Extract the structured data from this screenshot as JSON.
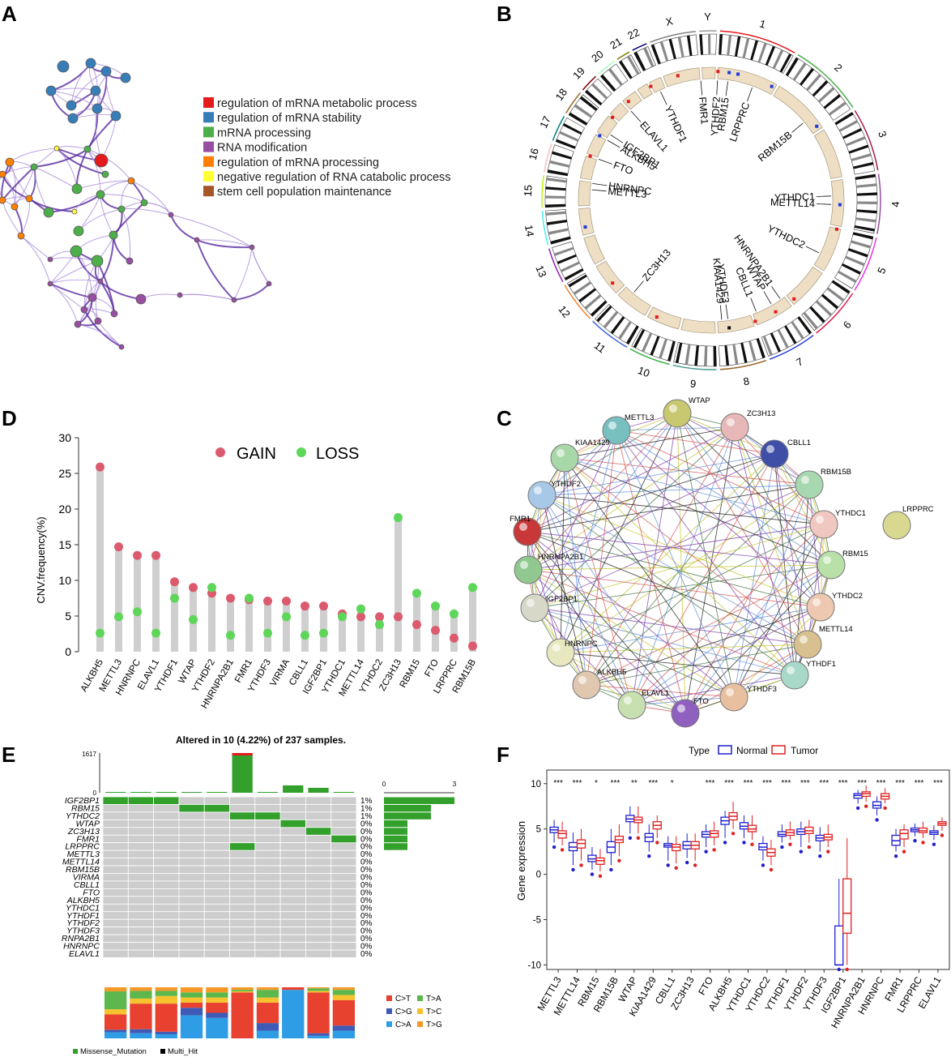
{
  "panels": {
    "a": "A",
    "b": "B",
    "c": "C",
    "d": "D",
    "e": "E",
    "f": "F"
  },
  "panel_a": {
    "legend": [
      {
        "label": "regulation of mRNA metabolic process",
        "color": "#e41a1c"
      },
      {
        "label": "regulation of mRNA stability",
        "color": "#377eb8"
      },
      {
        "label": "mRNA processing",
        "color": "#4daf4a"
      },
      {
        "label": "RNA modification",
        "color": "#984ea3"
      },
      {
        "label": "regulation of mRNA processing",
        "color": "#ff7f00"
      },
      {
        "label": "negative regulation of RNA catabolic process",
        "color": "#ffff33"
      },
      {
        "label": "stem cell population maintenance",
        "color": "#a65628"
      }
    ]
  },
  "panel_b": {
    "chromosomes": [
      "1",
      "2",
      "3",
      "4",
      "5",
      "6",
      "7",
      "8",
      "9",
      "10",
      "11",
      "12",
      "13",
      "14",
      "15",
      "16",
      "17",
      "18",
      "19",
      "20",
      "21",
      "22",
      "X",
      "Y"
    ],
    "genes": [
      "FMR1",
      "YTHDF2",
      "RBM15",
      "LRPPRC",
      "RBM15B",
      "YTHDC1",
      "METTL14",
      "YTHDC2",
      "HNRNPA2B1",
      "WTAP",
      "CBLL1",
      "YTHDF3",
      "KIAA1429",
      "ZC3H13",
      "METTL3",
      "HNRNPC",
      "FTO",
      "ALKBH5",
      "IGF2BP1",
      "ELAVL1",
      "YTHDF1"
    ]
  },
  "panel_c": {
    "nodes": [
      "WTAP",
      "ZC3H13",
      "CBLL1",
      "RBM15B",
      "YTHDC1",
      "RBM15",
      "YTHDC2",
      "METTL14",
      "YTHDF1",
      "YTHDF3",
      "FTO",
      "ELAVL1",
      "ALKBH5",
      "HNRNPC",
      "IGF2BP1",
      "HNRNPA2B1",
      "FMR1",
      "YTHDF2",
      "KIAA1429",
      "METTL3"
    ],
    "isolated": "LRPPRC"
  },
  "chart_data": [
    {
      "panel": "D",
      "type": "scatter",
      "title": "",
      "ylabel": "CNV.frequency(%)",
      "ylim": [
        0,
        30
      ],
      "yticks": [
        "0",
        "5",
        "10",
        "15",
        "20",
        "25",
        "30"
      ],
      "categories": [
        "ALKBH5",
        "METTL3",
        "HNRNPC",
        "ELAVL1",
        "YTHDF1",
        "WTAP",
        "YTHDF2",
        "HNRNPA2B1",
        "FMR1",
        "YTHDF3",
        "VIRMA",
        "CBLL1",
        "IGF2BP1",
        "YTHDC1",
        "METTL14",
        "YTHDC2",
        "ZC3H13",
        "RBM15",
        "FTO",
        "LRPPRC",
        "RBM15B"
      ],
      "series": [
        {
          "name": "GAIN",
          "color": "#dc5a6e",
          "values": [
            25.9,
            14.7,
            13.5,
            13.5,
            9.8,
            9.0,
            8.2,
            7.5,
            7.3,
            7.1,
            7.1,
            6.4,
            6.4,
            5.3,
            4.9,
            4.9,
            4.9,
            3.8,
            3.0,
            1.9,
            0.8
          ]
        },
        {
          "name": "LOSS",
          "color": "#5dd65a",
          "values": [
            2.6,
            4.9,
            5.6,
            2.6,
            7.5,
            4.5,
            9.0,
            2.3,
            7.5,
            2.6,
            4.9,
            2.3,
            2.6,
            4.9,
            6.0,
            3.8,
            18.8,
            8.2,
            6.4,
            5.3,
            9.0
          ]
        }
      ]
    },
    {
      "panel": "E",
      "type": "heatmap",
      "title": "Altered in 10 (4.22%) of 237 samples.",
      "top_axis_max": "1617",
      "top_axis_min": "0",
      "top_values": [
        8,
        10,
        12,
        6,
        15,
        1617,
        10,
        300,
        200,
        10
      ],
      "right_axis": [
        "0",
        "3"
      ],
      "genes": [
        "IGF2BP1",
        "RBM15",
        "YTHDC2",
        "WTAP",
        "ZC3H13",
        "FMR1",
        "LRPPRC",
        "METTL3",
        "METTL14",
        "RBM15B",
        "VIRMA",
        "CBLL1",
        "FTO",
        "ALKBH5",
        "YTHDC1",
        "YTHDF1",
        "YTHDF2",
        "YTHDF3",
        "RNPA2B1",
        "HNRNPC",
        "ELAVL1"
      ],
      "percents": [
        "1%",
        "1%",
        "1%",
        "0%",
        "0%",
        "0%",
        "0%",
        "0%",
        "0%",
        "0%",
        "0%",
        "0%",
        "0%",
        "0%",
        "0%",
        "0%",
        "0%",
        "0%",
        "0%",
        "0%",
        "0%"
      ],
      "gene_counts": [
        3,
        2,
        2,
        1,
        1,
        1,
        1,
        0,
        0,
        0,
        0,
        0,
        0,
        0,
        0,
        0,
        0,
        0,
        0,
        0,
        0
      ],
      "mutated_cells": [
        [
          0,
          0
        ],
        [
          0,
          1
        ],
        [
          0,
          2
        ],
        [
          1,
          3
        ],
        [
          1,
          4
        ],
        [
          2,
          5
        ],
        [
          2,
          6
        ],
        [
          3,
          7
        ],
        [
          4,
          8
        ],
        [
          5,
          9
        ],
        [
          6,
          5
        ]
      ],
      "titv_legend": [
        {
          "label": "C>T",
          "color": "#e8412f"
        },
        {
          "label": "T>A",
          "color": "#5cb74c"
        },
        {
          "label": "C>G",
          "color": "#3f5bb5"
        },
        {
          "label": "T>C",
          "color": "#f6c22d"
        },
        {
          "label": "C>A",
          "color": "#2f9de5"
        },
        {
          "label": "T>G",
          "color": "#f59a28"
        }
      ],
      "titv": [
        [
          0.3,
          0.35,
          0.05,
          0.1,
          0.12,
          0.08
        ],
        [
          0.5,
          0.15,
          0.08,
          0.1,
          0.1,
          0.07
        ],
        [
          0.55,
          0.1,
          0.05,
          0.15,
          0.08,
          0.07
        ],
        [
          0.1,
          0.1,
          0.15,
          0.1,
          0.45,
          0.1
        ],
        [
          0.2,
          0.1,
          0.1,
          0.1,
          0.4,
          0.1
        ],
        [
          0.9,
          0.03,
          0.0,
          0.02,
          0.0,
          0.05
        ],
        [
          0.4,
          0.15,
          0.15,
          0.1,
          0.15,
          0.05
        ],
        [
          0.05,
          0.0,
          0.0,
          0.0,
          0.95,
          0.0
        ],
        [
          0.8,
          0.05,
          0.05,
          0.03,
          0.05,
          0.02
        ],
        [
          0.5,
          0.1,
          0.1,
          0.1,
          0.15,
          0.05
        ]
      ],
      "variant_legend": [
        {
          "label": "Missense_Mutation",
          "color": "#33a02c"
        },
        {
          "label": "Multi_Hit",
          "color": "#000000"
        }
      ]
    },
    {
      "panel": "F",
      "type": "box",
      "ylabel": "Gene expression",
      "legend_title": "Type",
      "ylim": [
        -10.5,
        11.5
      ],
      "yticks": [
        "10",
        "5",
        "0",
        "-5",
        "-10"
      ],
      "categories": [
        "METTL3",
        "METTL14",
        "RBM15",
        "RBM15B",
        "WTAP",
        "KIAA1429",
        "CBLL1",
        "ZC3H13",
        "FTO",
        "ALKBH5",
        "YTHDC1",
        "YTHDC2",
        "YTHDF1",
        "YTHDF2",
        "YTHDF3",
        "IGF2BP1",
        "HNRNPA2B1",
        "HNRNPC",
        "FMR1",
        "LRPPRC",
        "ELAVL1"
      ],
      "significance": [
        "***",
        "***",
        "*",
        "***",
        "**",
        "***",
        "*",
        "",
        "***",
        "***",
        "***",
        "***",
        "***",
        "***",
        "***",
        "***",
        "***",
        "***",
        "***",
        "***",
        "***"
      ],
      "series": [
        {
          "name": "Normal",
          "color": "#1f1fd0",
          "stats": [
            [
              3.5,
              4.6,
              4.9,
              5.2,
              6.0
            ],
            [
              1.0,
              2.6,
              3.0,
              3.5,
              4.6
            ],
            [
              0.5,
              1.4,
              1.7,
              2.1,
              3.0
            ],
            [
              1.0,
              2.4,
              3.0,
              3.6,
              5.0
            ],
            [
              4.5,
              5.8,
              6.1,
              6.5,
              7.5
            ],
            [
              2.5,
              3.6,
              4.1,
              4.5,
              5.5
            ],
            [
              1.5,
              3.0,
              3.2,
              3.4,
              4.2
            ],
            [
              1.8,
              2.8,
              3.2,
              3.6,
              4.5
            ],
            [
              3.0,
              4.1,
              4.4,
              4.7,
              5.5
            ],
            [
              4.0,
              5.5,
              5.9,
              6.3,
              7.0
            ],
            [
              4.0,
              5.0,
              5.3,
              5.7,
              6.5
            ],
            [
              1.5,
              2.7,
              3.0,
              3.4,
              4.2
            ],
            [
              3.5,
              4.2,
              4.4,
              4.7,
              5.5
            ],
            [
              3.0,
              4.4,
              4.7,
              5.0,
              5.8
            ],
            [
              2.5,
              3.7,
              4.0,
              4.3,
              5.2
            ],
            [
              -10,
              -10,
              -10,
              -5.7,
              -0.5
            ],
            [
              7.8,
              8.4,
              8.7,
              8.9,
              9.3
            ],
            [
              6.5,
              7.3,
              7.6,
              8.0,
              8.6
            ],
            [
              2.5,
              3.2,
              3.7,
              4.3,
              5.0
            ],
            [
              4.2,
              4.7,
              4.9,
              5.1,
              5.6
            ],
            [
              3.8,
              4.4,
              4.6,
              4.8,
              5.4
            ]
          ]
        },
        {
          "name": "Tumor",
          "color": "#e02020",
          "stats": [
            [
              3.2,
              4.0,
              4.5,
              4.8,
              5.8
            ],
            [
              1.5,
              2.9,
              3.4,
              3.8,
              5.0
            ],
            [
              0.3,
              1.1,
              1.5,
              1.8,
              2.8
            ],
            [
              2.0,
              3.5,
              3.8,
              4.2,
              5.5
            ],
            [
              4.5,
              5.7,
              6.0,
              6.3,
              7.5
            ],
            [
              4.0,
              5.0,
              5.4,
              5.8,
              6.5
            ],
            [
              1.2,
              2.6,
              3.0,
              3.3,
              4.2
            ],
            [
              1.5,
              2.8,
              3.2,
              3.6,
              4.5
            ],
            [
              3.2,
              4.1,
              4.5,
              4.8,
              5.8
            ],
            [
              5.0,
              6.0,
              6.4,
              6.8,
              8.0
            ],
            [
              3.8,
              4.7,
              5.0,
              5.4,
              6.5
            ],
            [
              1.0,
              2.0,
              2.4,
              2.8,
              3.8
            ],
            [
              3.8,
              4.3,
              4.6,
              4.9,
              5.8
            ],
            [
              3.5,
              4.5,
              4.8,
              5.2,
              6.0
            ],
            [
              3.0,
              3.8,
              4.1,
              4.4,
              5.5
            ],
            [
              -10,
              -6.5,
              -4.3,
              -0.5,
              4.0
            ],
            [
              8.0,
              8.6,
              8.9,
              9.1,
              9.8
            ],
            [
              7.8,
              8.3,
              8.6,
              8.9,
              9.5
            ],
            [
              3.0,
              3.9,
              4.5,
              4.9,
              5.5
            ],
            [
              4.0,
              4.6,
              4.8,
              5.1,
              5.8
            ],
            [
              4.8,
              5.4,
              5.6,
              5.8,
              6.3
            ]
          ]
        }
      ]
    }
  ]
}
